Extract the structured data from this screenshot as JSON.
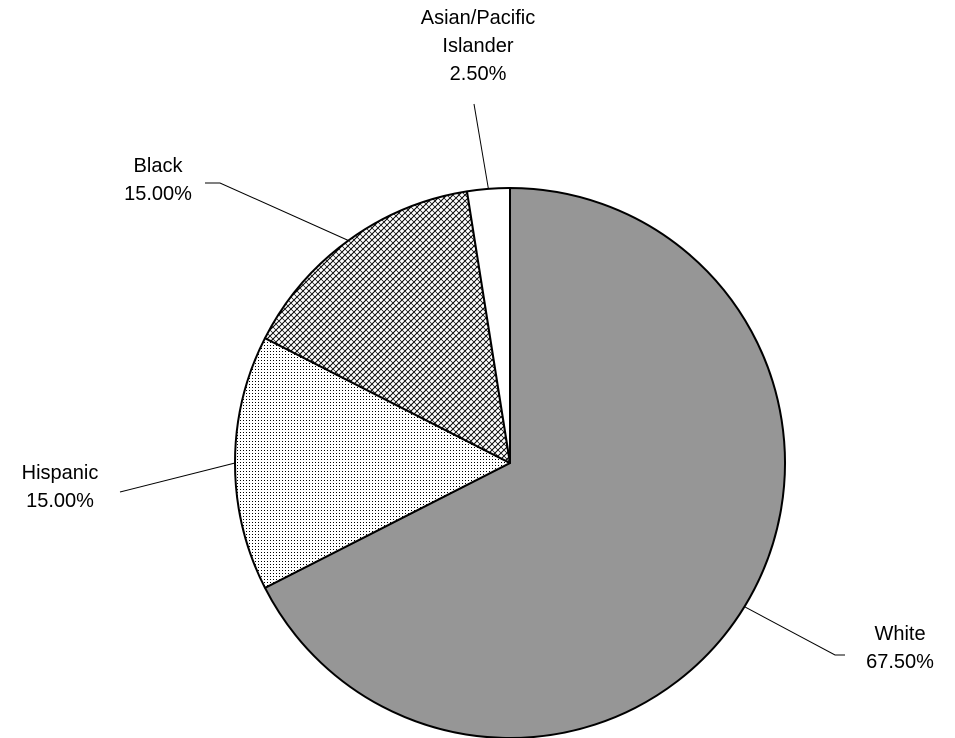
{
  "chart_data": {
    "type": "pie",
    "title": "",
    "start_angle_deg": 0,
    "direction": "clockwise",
    "slices": [
      {
        "name": "White",
        "value": 67.5,
        "label": "67.50%",
        "color": "#969696",
        "fill": "solid"
      },
      {
        "name": "Hispanic",
        "value": 15.0,
        "label": "15.00%",
        "color": "#ffffff",
        "fill": "dotted"
      },
      {
        "name": "Black",
        "value": 15.0,
        "label": "15.00%",
        "color": "#ffffff",
        "fill": "crosshatch"
      },
      {
        "name": "Asian/Pacific Islander",
        "value": 2.5,
        "label": "2.50%",
        "color": "#ffffff",
        "fill": "solid"
      }
    ],
    "label_lines": {
      "asian": [
        "Asian/Pacific",
        "Islander",
        "2.50%"
      ],
      "black": [
        "Black",
        "15.00%"
      ],
      "hispanic": [
        "Hispanic",
        "15.00%"
      ],
      "white": [
        "White",
        "67.50%"
      ]
    },
    "legend": "none",
    "colors": {
      "outline": "#000000",
      "white_slice": "#969696",
      "pattern": "#000000"
    }
  }
}
